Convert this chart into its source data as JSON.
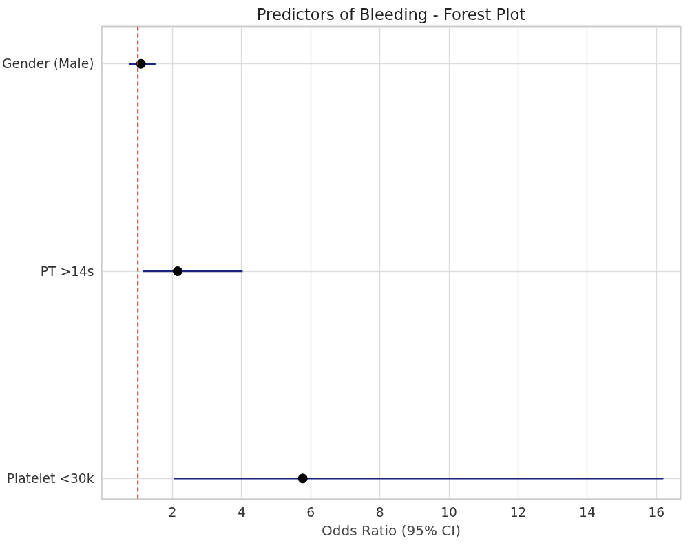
{
  "chart_data": {
    "type": "scatter",
    "title": "Predictors of Bleeding - Forest Plot",
    "xlabel": "Odds Ratio (95% CI)",
    "orientation": "horizontal",
    "categories": [
      "Gender (Male)",
      "PT >14s",
      "Platelet <30k"
    ],
    "series": [
      {
        "color": "#000000",
        "values": [
          1.09,
          2.15,
          5.77
        ],
        "errors": [
          [
            0.75,
            1.51
          ],
          [
            1.15,
            4.03
          ],
          [
            2.05,
            16.2
          ]
        ]
      }
    ],
    "xlim": [
      -0.05,
      16.7
    ],
    "xticks": [
      2,
      4,
      6,
      8,
      10,
      12,
      14,
      16
    ],
    "ref_lines": [
      {
        "axis": "x",
        "value": 1,
        "color": "#c0392b",
        "line_style": "dashed"
      }
    ],
    "grid": true,
    "marker": "circle"
  }
}
